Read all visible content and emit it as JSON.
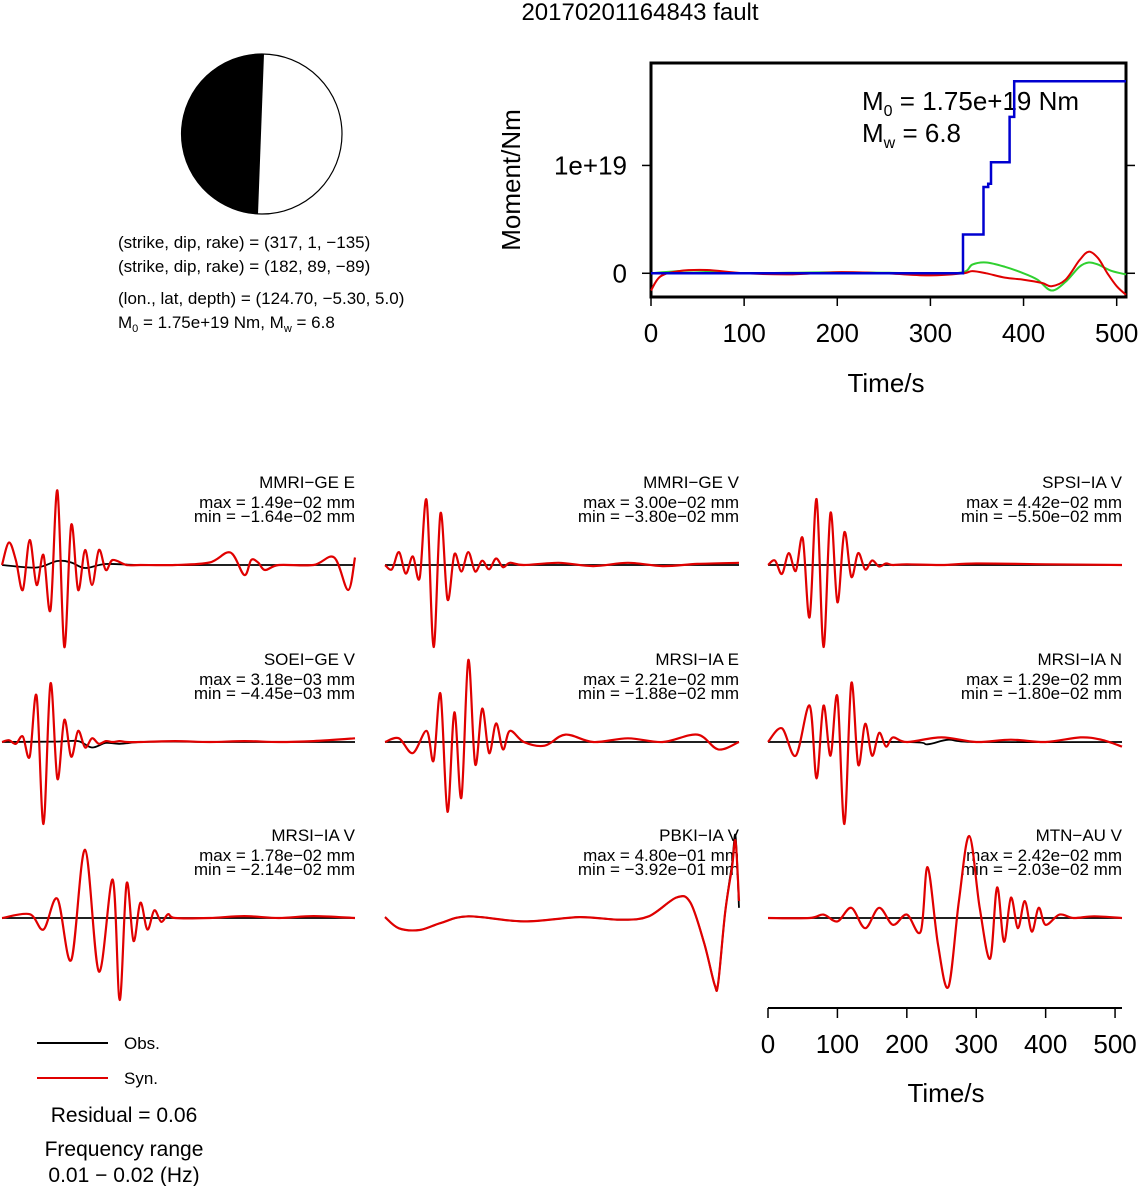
{
  "title": "20170201164843 fault",
  "focal": {
    "line1": "(strike, dip, rake) = (317, 1, −135)",
    "line2": "(strike, dip, rake) = (182, 89, −89)",
    "line3": "(lon., lat, depth) = (124.70, −5.30, 5.0)",
    "m0_prefix": "M",
    "m0_sub": "0",
    "m0_text": " = 1.75e+19 Nm, M",
    "mw_sub": "w",
    "mw_text": " = 6.8"
  },
  "colors": {
    "obs": "#000000",
    "syn": "#e00000",
    "cum": "#0000d0",
    "alt": "#30d030"
  },
  "chart_data": [
    {
      "type": "line",
      "id": "moment",
      "xlabel": "Time/s",
      "ylabel": "Moment/Nm",
      "xlim": [
        0,
        510
      ],
      "ylim": [
        -2.2e+18,
        1.95e+19
      ],
      "xticks": [
        "0",
        "100",
        "200",
        "300",
        "400",
        "500"
      ],
      "yticks": [
        "0",
        "1e+19"
      ],
      "annotation": {
        "m0_prefix": "M",
        "m0_sub": "0",
        "m0_text": " = 1.75e+19 Nm",
        "mw_prefix": "M",
        "mw_sub": "w",
        "mw_text": " = 6.8"
      },
      "series": [
        {
          "color": "#0000d0",
          "step": true,
          "x": [
            0,
            335,
            335,
            357,
            357,
            362,
            362,
            365,
            365,
            370,
            370,
            385,
            385,
            390,
            390,
            510
          ],
          "y": [
            0,
            0,
            3.6e+18,
            3.6e+18,
            8e+18,
            8e+18,
            8.3e+18,
            8.3e+18,
            1.03e+19,
            1.03e+19,
            1.03e+19,
            1.03e+19,
            1.45e+19,
            1.45e+19,
            1.78e+19,
            1.78e+19
          ]
        },
        {
          "color": "#30d030",
          "x": [
            0,
            20,
            50,
            100,
            200,
            300,
            335,
            345,
            360,
            380,
            400,
            415,
            430,
            445,
            460,
            470,
            480,
            495,
            510
          ],
          "y": [
            0,
            1.5e+17,
            2.5e+17,
            0,
            1e+17,
            0,
            1e+17,
            8e+17,
            1e+18,
            6e+17,
            0,
            -6e+17,
            -1.6e+18,
            -8e+17,
            6e+17,
            1e+18,
            8e+17,
            2e+17,
            -1e+17
          ]
        },
        {
          "color": "#e00000",
          "x": [
            0,
            10,
            30,
            60,
            100,
            150,
            200,
            250,
            300,
            335,
            345,
            360,
            380,
            400,
            420,
            430,
            445,
            460,
            470,
            480,
            490,
            500,
            510
          ],
          "y": [
            -1.6e+18,
            -3e+17,
            2e+17,
            3e+17,
            0,
            -1e+17,
            1e+17,
            0,
            -2e+17,
            0,
            2e+17,
            0,
            -4e+17,
            -6e+17,
            -9e+17,
            -1.2e+18,
            -6e+17,
            1.2e+18,
            2e+18,
            1.4e+18,
            0,
            -1.2e+18,
            -2e+18
          ]
        }
      ]
    },
    {
      "type": "line",
      "id": "w1",
      "station": "MMRI−GE E",
      "max_text": "max = 1.49e−02 mm",
      "min_text": "min = −1.64e−02 mm",
      "xlim": [
        0,
        510
      ],
      "ylim": [
        -0.0164,
        0.0149
      ],
      "series": [
        {
          "name": "Obs.",
          "x": [
            0,
            50,
            80,
            100,
            120,
            150,
            200,
            300,
            400,
            510
          ],
          "y": [
            0,
            -0.0005,
            0.0008,
            0.0005,
            -0.0006,
            0.0002,
            0,
            0,
            0,
            0
          ]
        },
        {
          "name": "Syn.",
          "x": [
            0,
            10,
            20,
            30,
            40,
            50,
            60,
            70,
            80,
            90,
            100,
            110,
            120,
            130,
            140,
            150,
            160,
            180,
            200,
            250,
            300,
            330,
            350,
            360,
            370,
            380,
            400,
            450,
            480,
            500,
            510
          ],
          "y": [
            0,
            0.0045,
            0.001,
            -0.005,
            0.005,
            -0.004,
            0.002,
            -0.009,
            0.0149,
            -0.0164,
            0.008,
            -0.005,
            0.003,
            -0.004,
            0.003,
            -0.001,
            0.001,
            0,
            0,
            0,
            0.0005,
            0.0025,
            -0.002,
            0.001,
            0.0005,
            -0.001,
            0,
            0,
            0.0015,
            -0.005,
            0.0015
          ]
        }
      ]
    },
    {
      "type": "line",
      "id": "w2",
      "station": "MMRI−GE V",
      "max_text": "max = 3.00e−02 mm",
      "min_text": "min = −3.80e−02 mm",
      "xlim": [
        0,
        510
      ],
      "ylim": [
        -0.038,
        0.03
      ],
      "series": [
        {
          "name": "Obs.",
          "x": [
            0,
            510
          ],
          "y": [
            0,
            0
          ]
        },
        {
          "name": "Syn.",
          "x": [
            0,
            10,
            20,
            30,
            40,
            50,
            60,
            70,
            80,
            90,
            100,
            110,
            120,
            130,
            140,
            150,
            160,
            170,
            180,
            200,
            250,
            300,
            350,
            400,
            450,
            510
          ],
          "y": [
            0,
            -0.002,
            0.006,
            -0.004,
            0.004,
            -0.006,
            0.03,
            -0.038,
            0.024,
            -0.016,
            0.005,
            -0.003,
            0.006,
            -0.003,
            0.002,
            -0.002,
            0.003,
            -0.001,
            0.001,
            0,
            0.001,
            -0.0005,
            0.001,
            -0.0005,
            0.0005,
            0.001
          ]
        }
      ]
    },
    {
      "type": "line",
      "id": "w3",
      "station": "SPSI−IA V",
      "max_text": "max = 4.42e−02 mm",
      "min_text": "min = −5.50e−02 mm",
      "xlim": [
        0,
        510
      ],
      "ylim": [
        -0.055,
        0.0442
      ],
      "series": [
        {
          "name": "Obs.",
          "x": [
            0,
            510
          ],
          "y": [
            0,
            0
          ]
        },
        {
          "name": "Syn.",
          "x": [
            0,
            10,
            20,
            30,
            40,
            50,
            60,
            70,
            80,
            90,
            100,
            110,
            120,
            130,
            140,
            150,
            160,
            170,
            180,
            200,
            250,
            300,
            400,
            510
          ],
          "y": [
            0,
            0.003,
            -0.006,
            0.008,
            -0.004,
            0.018,
            -0.035,
            0.0442,
            -0.055,
            0.035,
            -0.025,
            0.022,
            -0.008,
            0.008,
            -0.003,
            0.003,
            -0.001,
            0.001,
            0,
            0.0005,
            0,
            0.001,
            0.0005,
            0
          ]
        }
      ]
    },
    {
      "type": "line",
      "id": "w4",
      "station": "SOEI−GE V",
      "max_text": "max = 3.18e−03 mm",
      "min_text": "min = −4.45e−03 mm",
      "xlim": [
        0,
        510
      ],
      "ylim": [
        -0.00445,
        0.00318
      ],
      "series": [
        {
          "name": "Obs.",
          "x": [
            0,
            80,
            110,
            130,
            150,
            170,
            200,
            250,
            300,
            400,
            510
          ],
          "y": [
            0,
            2e-05,
            5e-05,
            -0.0003,
            -5e-05,
            -0.0001,
            0,
            2e-05,
            0,
            0,
            0
          ]
        },
        {
          "name": "Syn.",
          "x": [
            0,
            10,
            20,
            30,
            40,
            50,
            60,
            70,
            80,
            90,
            100,
            110,
            120,
            130,
            140,
            150,
            160,
            170,
            180,
            200,
            250,
            300,
            350,
            400,
            450,
            510
          ],
          "y": [
            0,
            0.0001,
            -0.0001,
            0.0003,
            -0.0008,
            0.0025,
            -0.00445,
            0.00318,
            -0.002,
            0.0012,
            -0.0008,
            0.0006,
            -0.0003,
            0.0002,
            -0.0001,
            5e-05,
            0,
            5e-05,
            0,
            0,
            5e-05,
            0,
            5e-05,
            0,
            5e-05,
            0.0002
          ]
        }
      ]
    },
    {
      "type": "line",
      "id": "w5",
      "station": "MRSI−IA E",
      "max_text": "max = 2.21e−02 mm",
      "min_text": "min = −1.88e−02 mm",
      "xlim": [
        0,
        510
      ],
      "ylim": [
        -0.0188,
        0.0221
      ],
      "series": [
        {
          "name": "Obs.",
          "x": [
            0,
            510
          ],
          "y": [
            0,
            0
          ]
        },
        {
          "name": "Syn.",
          "x": [
            0,
            20,
            40,
            60,
            70,
            80,
            90,
            100,
            110,
            120,
            130,
            140,
            150,
            160,
            170,
            180,
            200,
            230,
            260,
            300,
            350,
            400,
            450,
            480,
            510
          ],
          "y": [
            0,
            0.001,
            -0.003,
            0.003,
            -0.005,
            0.013,
            -0.0188,
            0.008,
            -0.015,
            0.0221,
            -0.006,
            0.009,
            -0.003,
            0.005,
            -0.002,
            0.003,
            0,
            -0.001,
            0.002,
            0,
            0.001,
            0,
            0.002,
            -0.002,
            0
          ]
        }
      ]
    },
    {
      "type": "line",
      "id": "w6",
      "station": "MRSI−IA N",
      "max_text": "max = 1.29e−02 mm",
      "min_text": "min = −1.80e−02 mm",
      "xlim": [
        0,
        510
      ],
      "ylim": [
        -0.018,
        0.0129
      ],
      "series": [
        {
          "name": "Obs.",
          "x": [
            0,
            200,
            230,
            260,
            300,
            510
          ],
          "y": [
            0,
            0,
            -0.0005,
            0.0005,
            0,
            0
          ]
        },
        {
          "name": "Syn.",
          "x": [
            0,
            20,
            40,
            60,
            70,
            80,
            90,
            100,
            110,
            120,
            130,
            140,
            150,
            160,
            170,
            180,
            200,
            250,
            300,
            350,
            400,
            450,
            480,
            510
          ],
          "y": [
            0,
            0.003,
            -0.003,
            0.008,
            -0.008,
            0.008,
            -0.003,
            0.01,
            -0.018,
            0.0129,
            -0.005,
            0.004,
            -0.003,
            0.002,
            -0.001,
            0.001,
            0,
            0.001,
            0,
            0.0005,
            0,
            0.001,
            0.0005,
            -0.001
          ]
        }
      ]
    },
    {
      "type": "line",
      "id": "w7",
      "station": "MRSI−IA V",
      "max_text": "max = 1.78e−02 mm",
      "min_text": "min = −2.14e−02 mm",
      "xlim": [
        0,
        510
      ],
      "ylim": [
        -0.0214,
        0.0178
      ],
      "series": [
        {
          "name": "Obs.",
          "x": [
            0,
            510
          ],
          "y": [
            0,
            0
          ]
        },
        {
          "name": "Syn.",
          "x": [
            0,
            40,
            60,
            80,
            100,
            120,
            140,
            160,
            170,
            180,
            190,
            200,
            210,
            220,
            230,
            240,
            250,
            300,
            350,
            400,
            450,
            510
          ],
          "y": [
            0,
            0.001,
            -0.003,
            0.005,
            -0.011,
            0.0178,
            -0.014,
            0.01,
            -0.0214,
            0.009,
            -0.006,
            0.004,
            -0.003,
            0.002,
            -0.001,
            0.001,
            0,
            0,
            0.0005,
            0,
            0.0005,
            0
          ]
        }
      ]
    },
    {
      "type": "line",
      "id": "w8",
      "station": "PBKI−IA V",
      "max_text": "max = 4.80e−01 mm",
      "min_text": "min = −3.92e−01 mm",
      "xlim": [
        0,
        510
      ],
      "ylim": [
        -0.392,
        0.48
      ],
      "series": [
        {
          "name": "Obs.",
          "x": [
            0,
            20,
            50,
            80,
            120,
            200,
            280,
            340,
            380,
            420,
            440,
            460,
            475,
            480,
            490,
            500,
            505,
            510
          ],
          "y": [
            0.005,
            -0.06,
            -0.07,
            -0.03,
            0.01,
            -0.02,
            0.005,
            -0.01,
            0.01,
            0.12,
            0.09,
            -0.15,
            -0.392,
            -0.38,
            0.03,
            0.32,
            0.48,
            0.06
          ]
        },
        {
          "name": "Syn.",
          "x": [
            0,
            20,
            50,
            80,
            120,
            200,
            280,
            340,
            380,
            420,
            440,
            460,
            475,
            480,
            490,
            500,
            505,
            510
          ],
          "y": [
            0.005,
            -0.06,
            -0.07,
            -0.03,
            0.01,
            -0.02,
            0.005,
            -0.01,
            0.01,
            0.12,
            0.09,
            -0.15,
            -0.392,
            -0.38,
            0.03,
            0.3,
            0.45,
            0.1
          ]
        }
      ]
    },
    {
      "type": "line",
      "id": "w9",
      "station": "MTN−AU V",
      "max_text": "max = 2.42e−02 mm",
      "min_text": "min = −2.03e−02 mm",
      "xlim": [
        0,
        510
      ],
      "ylim": [
        -0.0203,
        0.0242
      ],
      "xlabel": "Time/s",
      "xticks": [
        "0",
        "100",
        "200",
        "300",
        "400",
        "500"
      ],
      "series": [
        {
          "name": "Obs.",
          "x": [
            0,
            510
          ],
          "y": [
            0,
            0
          ]
        },
        {
          "name": "Syn.",
          "x": [
            0,
            60,
            80,
            100,
            120,
            140,
            160,
            180,
            200,
            220,
            230,
            245,
            260,
            275,
            290,
            305,
            320,
            330,
            340,
            350,
            360,
            370,
            380,
            390,
            400,
            420,
            440,
            470,
            510
          ],
          "y": [
            0,
            0,
            0.001,
            -0.001,
            0.003,
            -0.003,
            0.003,
            -0.002,
            0.001,
            -0.004,
            0.015,
            -0.008,
            -0.0203,
            0.005,
            0.0242,
            0.003,
            -0.012,
            0.009,
            -0.007,
            0.006,
            -0.003,
            0.005,
            -0.004,
            0.003,
            -0.002,
            0.001,
            0,
            0.0005,
            0
          ]
        }
      ]
    }
  ],
  "legend": {
    "obs": "Obs.",
    "syn": "Syn."
  },
  "residual": "Residual = 0.06",
  "freq_title": "Frequency range",
  "freq_range": "0.01 − 0.02 (Hz)"
}
